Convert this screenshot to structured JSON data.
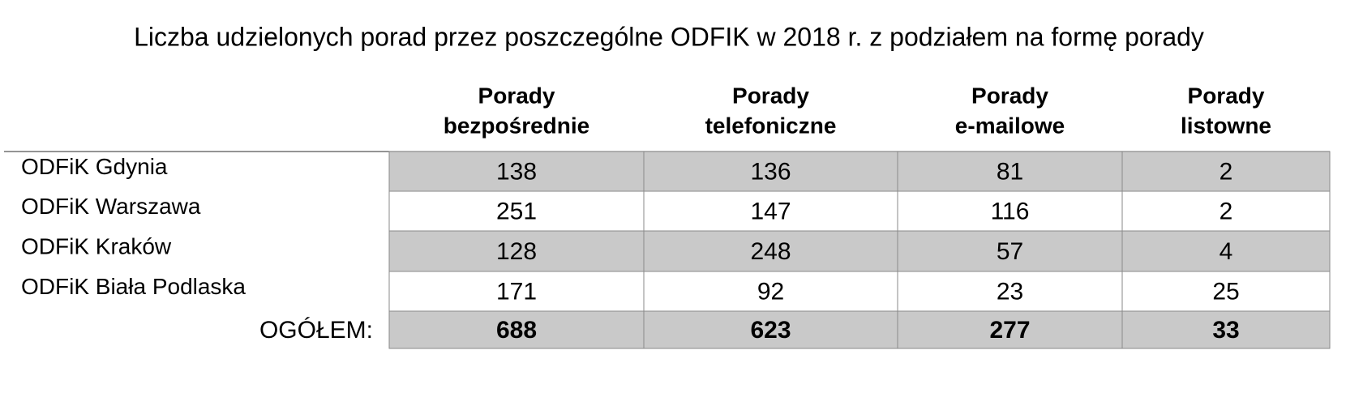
{
  "header": {
    "title": "Liczba udzielonych porad przez poszczególne ODFIK w 2018 r. z podziałem na formę porady"
  },
  "table": {
    "columns": [
      [
        "Porady",
        "bezpośrednie"
      ],
      [
        "Porady",
        "telefoniczne"
      ],
      [
        "Porady",
        "e-mailowe"
      ],
      [
        "Porady",
        "listowne"
      ]
    ],
    "rows": [
      {
        "label": "ODFiK Gdynia",
        "values": [
          138,
          136,
          81,
          2
        ]
      },
      {
        "label": "ODFiK Warszawa",
        "values": [
          251,
          147,
          116,
          2
        ]
      },
      {
        "label": "ODFiK Kraków",
        "values": [
          128,
          248,
          57,
          4
        ]
      },
      {
        "label": "ODFiK Biała Podlaska",
        "values": [
          171,
          92,
          23,
          25
        ]
      }
    ],
    "total": {
      "label": "OGÓŁEM:",
      "values": [
        688,
        623,
        277,
        33
      ]
    }
  }
}
